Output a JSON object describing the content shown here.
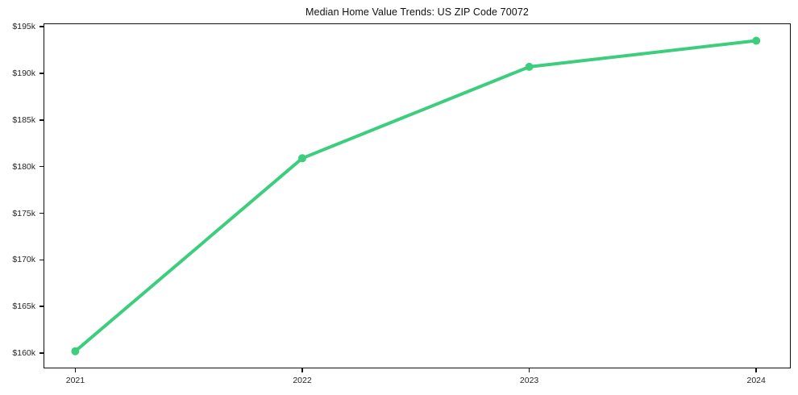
{
  "page": {
    "background": "#ffffff"
  },
  "chart_data": {
    "type": "line",
    "title": "Median Home Value Trends: US ZIP Code 70072",
    "x": [
      2021,
      2022,
      2023,
      2024
    ],
    "x_tick_labels": [
      "2021",
      "2022",
      "2023",
      "2024"
    ],
    "values_k": [
      160.2,
      180.9,
      190.7,
      193.5
    ],
    "y_ticks_k": [
      160,
      165,
      170,
      175,
      180,
      185,
      190,
      195
    ],
    "y_tick_labels": [
      "$160k",
      "$165k",
      "$170k",
      "$175k",
      "$180k",
      "$185k",
      "$190k",
      "$195k"
    ],
    "ylim_k": [
      158.36,
      195.36
    ],
    "xlim": [
      2020.86,
      2024.152
    ],
    "xlabel": "",
    "ylabel": "",
    "grid": false,
    "legend": "none",
    "line_color": "#3ccd7d",
    "marker": "circle",
    "marker_color": "#3ccd7d",
    "frame_color": "#101010",
    "tick_label_color": "#262626",
    "title_color": "#111111"
  }
}
